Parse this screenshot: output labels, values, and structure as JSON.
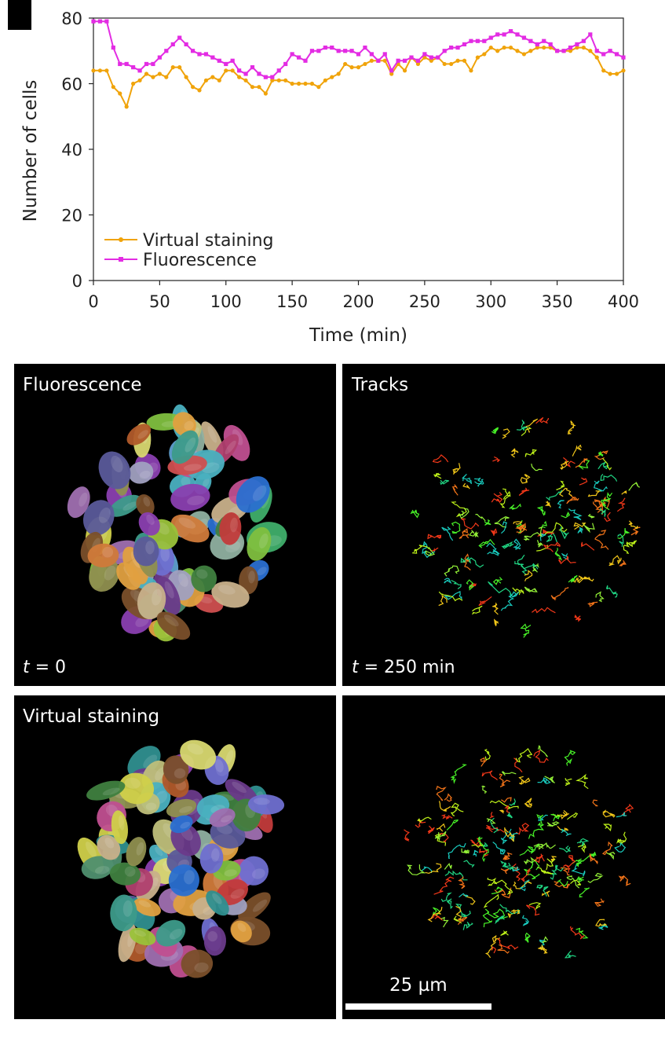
{
  "chart_data": {
    "type": "line",
    "xlabel": "Time (min)",
    "ylabel": "Number of cells",
    "xlim": [
      0,
      400
    ],
    "ylim": [
      0,
      80
    ],
    "xticks": [
      "0",
      "50",
      "100",
      "150",
      "200",
      "250",
      "300",
      "350",
      "400"
    ],
    "yticks": [
      "0",
      "20",
      "40",
      "60",
      "80"
    ],
    "legend_position": "bottom-left",
    "grid": false,
    "series": [
      {
        "name": "Virtual staining",
        "color": "#f0a30a",
        "x": [
          0,
          5,
          10,
          15,
          20,
          25,
          30,
          35,
          40,
          45,
          50,
          55,
          60,
          65,
          70,
          75,
          80,
          85,
          90,
          95,
          100,
          105,
          110,
          115,
          120,
          125,
          130,
          135,
          140,
          145,
          150,
          155,
          160,
          165,
          170,
          175,
          180,
          185,
          190,
          195,
          200,
          205,
          210,
          215,
          220,
          225,
          230,
          235,
          240,
          245,
          250,
          255,
          260,
          265,
          270,
          275,
          280,
          285,
          290,
          295,
          300,
          305,
          310,
          315,
          320,
          325,
          330,
          335,
          340,
          345,
          350,
          355,
          360,
          365,
          370,
          375,
          380,
          385,
          390,
          395,
          400
        ],
        "values": [
          64,
          64,
          64,
          59,
          57,
          53,
          60,
          61,
          63,
          62,
          63,
          62,
          65,
          65,
          62,
          59,
          58,
          61,
          62,
          61,
          64,
          64,
          62,
          61,
          59,
          59,
          57,
          61,
          61,
          61,
          60,
          60,
          60,
          60,
          59,
          61,
          62,
          63,
          66,
          65,
          65,
          66,
          67,
          67,
          67,
          63,
          66,
          64,
          68,
          66,
          68,
          67,
          68,
          66,
          66,
          67,
          67,
          64,
          68,
          69,
          71,
          70,
          71,
          71,
          70,
          69,
          70,
          71,
          71,
          71,
          70,
          70,
          70,
          71,
          71,
          70,
          68,
          64,
          63,
          63,
          64
        ]
      },
      {
        "name": "Fluorescence",
        "color": "#e32ce3",
        "x": [
          0,
          5,
          10,
          15,
          20,
          25,
          30,
          35,
          40,
          45,
          50,
          55,
          60,
          65,
          70,
          75,
          80,
          85,
          90,
          95,
          100,
          105,
          110,
          115,
          120,
          125,
          130,
          135,
          140,
          145,
          150,
          155,
          160,
          165,
          170,
          175,
          180,
          185,
          190,
          195,
          200,
          205,
          210,
          215,
          220,
          225,
          230,
          235,
          240,
          245,
          250,
          255,
          260,
          265,
          270,
          275,
          280,
          285,
          290,
          295,
          300,
          305,
          310,
          315,
          320,
          325,
          330,
          335,
          340,
          345,
          350,
          355,
          360,
          365,
          370,
          375,
          380,
          385,
          390,
          395,
          400
        ],
        "values": [
          79,
          79,
          79,
          71,
          66,
          66,
          65,
          64,
          66,
          66,
          68,
          70,
          72,
          74,
          72,
          70,
          69,
          69,
          68,
          67,
          66,
          67,
          64,
          63,
          65,
          63,
          62,
          62,
          64,
          66,
          69,
          68,
          67,
          70,
          70,
          71,
          71,
          70,
          70,
          70,
          69,
          71,
          69,
          67,
          69,
          64,
          67,
          67,
          68,
          67,
          69,
          68,
          68,
          70,
          71,
          71,
          72,
          73,
          73,
          73,
          74,
          75,
          75,
          76,
          75,
          74,
          73,
          72,
          73,
          72,
          70,
          70,
          71,
          72,
          73,
          75,
          70,
          69,
          70,
          69,
          68
        ]
      }
    ]
  },
  "panels": {
    "fluor_label": "Fluorescence",
    "tracks_label": "Tracks",
    "virtual_label": "Virtual staining",
    "t0_var": "t",
    "t0_rest": " = 0",
    "t250_var": "t",
    "t250_rest": " = 250 min",
    "scalebar": "25 µm"
  }
}
